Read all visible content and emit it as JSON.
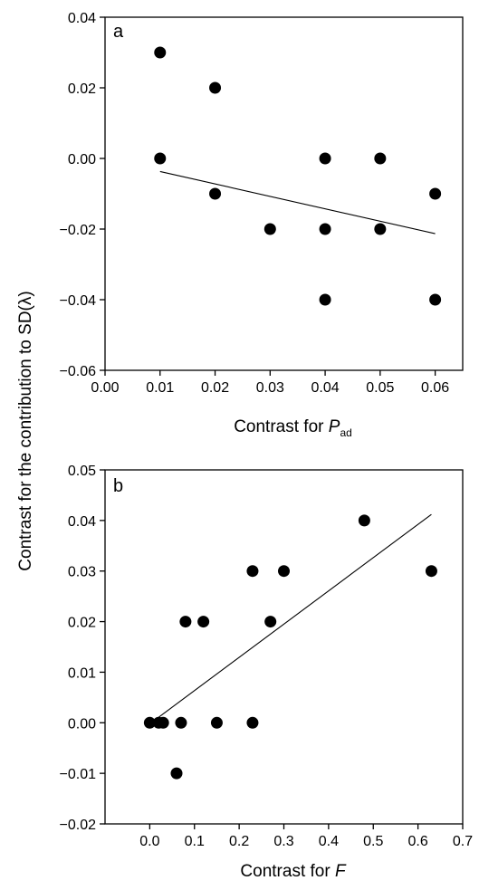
{
  "shared_ylabel": "Contrast for the contribution to SD(λ)",
  "chart_data": [
    {
      "type": "scatter",
      "panel_label": "a",
      "xlabel": "Contrast for ",
      "xlabel_var": "P",
      "xlabel_sub": "ad",
      "xlim": [
        0.0,
        0.065
      ],
      "ylim": [
        -0.06,
        0.04
      ],
      "x_ticks": [
        "0.00",
        "0.01",
        "0.02",
        "0.03",
        "0.04",
        "0.05",
        "0.06"
      ],
      "x_tick_values": [
        0.0,
        0.01,
        0.02,
        0.03,
        0.04,
        0.05,
        0.06
      ],
      "y_ticks": [
        "−0.06",
        "−0.04",
        "−0.02",
        "0.00",
        "0.02",
        "0.04"
      ],
      "y_tick_values": [
        -0.06,
        -0.04,
        -0.02,
        0.0,
        0.02,
        0.04
      ],
      "points": [
        {
          "x": 0.01,
          "y": 0.03
        },
        {
          "x": 0.01,
          "y": 0.0
        },
        {
          "x": 0.02,
          "y": 0.02
        },
        {
          "x": 0.02,
          "y": -0.01
        },
        {
          "x": 0.03,
          "y": -0.02
        },
        {
          "x": 0.04,
          "y": 0.0
        },
        {
          "x": 0.04,
          "y": -0.02
        },
        {
          "x": 0.04,
          "y": -0.04
        },
        {
          "x": 0.05,
          "y": 0.0
        },
        {
          "x": 0.05,
          "y": -0.02
        },
        {
          "x": 0.06,
          "y": -0.01
        },
        {
          "x": 0.06,
          "y": -0.04
        }
      ],
      "fit_line": [
        {
          "x": 0.01,
          "y": -0.0037
        },
        {
          "x": 0.06,
          "y": -0.0213
        }
      ],
      "grid": false
    },
    {
      "type": "scatter",
      "panel_label": "b",
      "xlabel": "Contrast for ",
      "xlabel_var": "F",
      "xlim": [
        -0.1,
        0.7
      ],
      "ylim": [
        -0.02,
        0.05
      ],
      "x_ticks": [
        "0.0",
        "0.1",
        "0.2",
        "0.3",
        "0.4",
        "0.5",
        "0.6",
        "0.7"
      ],
      "x_tick_values": [
        0.0,
        0.1,
        0.2,
        0.3,
        0.4,
        0.5,
        0.6,
        0.7
      ],
      "y_ticks": [
        "−0.02",
        "−0.01",
        "0.00",
        "0.01",
        "0.02",
        "0.03",
        "0.04",
        "0.05"
      ],
      "y_tick_values": [
        -0.02,
        -0.01,
        0.0,
        0.01,
        0.02,
        0.03,
        0.04,
        0.05
      ],
      "points": [
        {
          "x": 0.0,
          "y": 0.0
        },
        {
          "x": 0.02,
          "y": 0.0
        },
        {
          "x": 0.03,
          "y": 0.0
        },
        {
          "x": 0.07,
          "y": 0.0
        },
        {
          "x": 0.15,
          "y": 0.0
        },
        {
          "x": 0.23,
          "y": 0.0
        },
        {
          "x": 0.06,
          "y": -0.01
        },
        {
          "x": 0.08,
          "y": 0.02
        },
        {
          "x": 0.12,
          "y": 0.02
        },
        {
          "x": 0.27,
          "y": 0.02
        },
        {
          "x": 0.23,
          "y": 0.03
        },
        {
          "x": 0.3,
          "y": 0.03
        },
        {
          "x": 0.63,
          "y": 0.03
        },
        {
          "x": 0.48,
          "y": 0.04
        }
      ],
      "fit_line": [
        {
          "x": 0.02,
          "y": 0.0011
        },
        {
          "x": 0.63,
          "y": 0.0412
        }
      ],
      "grid": false
    }
  ]
}
